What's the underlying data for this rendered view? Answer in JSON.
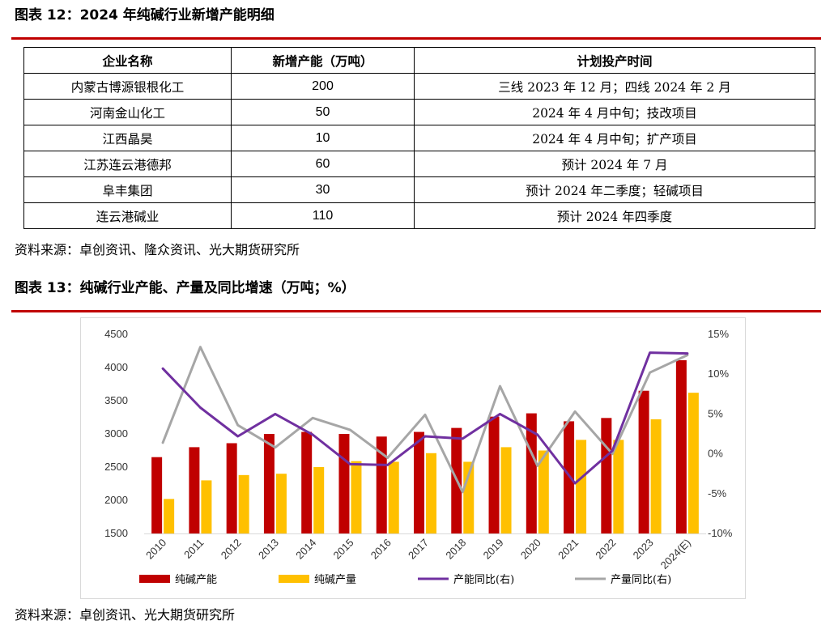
{
  "headings": {
    "table": "图表 12：2024 年纯碱行业新增产能明细",
    "chart": "图表 13：纯碱行业产能、产量及同比增速（万吨；%）"
  },
  "colors": {
    "rule": "#c00000",
    "capacity": "#c00000",
    "output": "#ffc000",
    "capacity_yoy": "#7030a0",
    "output_yoy": "#a6a6a6"
  },
  "table": {
    "headers": [
      "企业名称",
      "新增产能（万吨）",
      "计划投产时间"
    ],
    "rows": [
      [
        "内蒙古博源银根化工",
        "200",
        "三线 2023 年 12 月；四线 2024 年 2 月"
      ],
      [
        "河南金山化工",
        "50",
        "2024 年 4 月中旬；技改项目"
      ],
      [
        "江西晶昊",
        "10",
        "2024 年 4 月中旬；扩产项目"
      ],
      [
        "江苏连云港德邦",
        "60",
        "预计 2024 年 7 月"
      ],
      [
        "阜丰集团",
        "30",
        "预计 2024 年二季度；轻碱项目"
      ],
      [
        "连云港碱业",
        "110",
        "预计 2024 年四季度"
      ]
    ]
  },
  "sources": {
    "table": "资料来源：卓创资讯、隆众资讯、光大期货研究所",
    "chart": "资料来源：卓创资讯、光大期货研究所"
  },
  "chart_data": {
    "type": "bar",
    "title": "",
    "xlabel": "",
    "ylabel": "",
    "categories": [
      "2010",
      "2011",
      "2012",
      "2013",
      "2014",
      "2015",
      "2016",
      "2017",
      "2018",
      "2019",
      "2020",
      "2021",
      "2022",
      "2023",
      "2024(E)"
    ],
    "ylim": [
      1500,
      4500
    ],
    "y_ticks": [
      "1500",
      "2000",
      "2500",
      "3000",
      "3500",
      "4000",
      "4500"
    ],
    "y2lim": [
      -10,
      15
    ],
    "y2_ticks": [
      "-10%",
      "-5%",
      "0%",
      "5%",
      "10%",
      "15%"
    ],
    "grid": false,
    "legend_position": "bottom",
    "series": [
      {
        "name": "纯碱产能",
        "kind": "bar",
        "axis": "left",
        "color": "#c00000",
        "values": [
          2650,
          2800,
          2860,
          3000,
          3030,
          3000,
          2960,
          3030,
          3090,
          3260,
          3310,
          3190,
          3240,
          3650,
          4110
        ]
      },
      {
        "name": "纯碱产量",
        "kind": "bar",
        "axis": "left",
        "color": "#ffc000",
        "values": [
          2020,
          2300,
          2380,
          2400,
          2500,
          2590,
          2580,
          2710,
          2580,
          2800,
          2750,
          2910,
          2910,
          3220,
          3620
        ]
      },
      {
        "name": "产能同比(右)",
        "kind": "line",
        "axis": "right",
        "color": "#7030a0",
        "values": [
          10.7,
          5.8,
          2.2,
          5.0,
          2.4,
          -1.3,
          -1.4,
          2.2,
          1.9,
          5.0,
          2.4,
          -3.7,
          0.4,
          12.7,
          12.6
        ]
      },
      {
        "name": "产量同比(右)",
        "kind": "line",
        "axis": "right",
        "color": "#a6a6a6",
        "values": [
          1.4,
          13.4,
          3.6,
          0.8,
          4.5,
          3.0,
          -0.5,
          4.9,
          -4.8,
          8.5,
          -1.5,
          5.3,
          0.0,
          10.2,
          12.4
        ]
      }
    ]
  }
}
